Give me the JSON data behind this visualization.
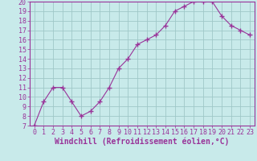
{
  "x": [
    0,
    1,
    2,
    3,
    4,
    5,
    6,
    7,
    8,
    9,
    10,
    11,
    12,
    13,
    14,
    15,
    16,
    17,
    18,
    19,
    20,
    21,
    22,
    23
  ],
  "y": [
    7.0,
    9.5,
    11.0,
    11.0,
    9.5,
    8.0,
    8.5,
    9.5,
    11.0,
    13.0,
    14.0,
    15.5,
    16.0,
    16.5,
    17.5,
    19.0,
    19.5,
    20.0,
    20.0,
    20.0,
    18.5,
    17.5,
    17.0,
    16.5
  ],
  "line_color": "#993399",
  "marker": "+",
  "marker_size": 4,
  "bg_color": "#c8eaea",
  "grid_color": "#a0c8c8",
  "xlabel": "Windchill (Refroidissement éolien,°C)",
  "xlim_min": -0.5,
  "xlim_max": 23.5,
  "ylim_min": 7,
  "ylim_max": 20,
  "yticks": [
    7,
    8,
    9,
    10,
    11,
    12,
    13,
    14,
    15,
    16,
    17,
    18,
    19,
    20
  ],
  "xticks": [
    0,
    1,
    2,
    3,
    4,
    5,
    6,
    7,
    8,
    9,
    10,
    11,
    12,
    13,
    14,
    15,
    16,
    17,
    18,
    19,
    20,
    21,
    22,
    23
  ],
  "spine_color": "#993399",
  "tick_color": "#993399",
  "label_color": "#993399",
  "font_size": 6,
  "xlabel_fontsize": 7
}
